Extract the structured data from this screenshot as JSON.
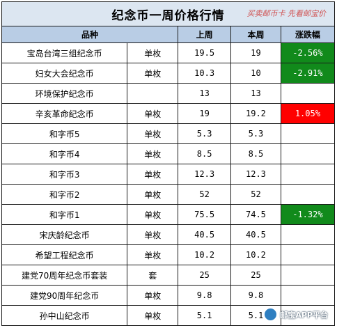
{
  "title": "纪念币一周价格行情",
  "slogan": "买卖邮币卡 先看邮宝价",
  "columns": [
    "品种",
    "上周",
    "本周",
    "涨跌幅"
  ],
  "rows": [
    {
      "name": "宝岛台湾三组纪念币",
      "unit": "单枚",
      "last": "19.5",
      "this": "19",
      "change": "-2.56%",
      "trend": "down"
    },
    {
      "name": "妇女大会纪念币",
      "unit": "单枚",
      "last": "10.3",
      "this": "10",
      "change": "-2.91%",
      "trend": "down"
    },
    {
      "name": "环境保护纪念币",
      "unit": "",
      "last": "13",
      "this": "13",
      "change": "",
      "trend": "flat"
    },
    {
      "name": "辛亥革命纪念币",
      "unit": "单枚",
      "last": "19",
      "this": "19.2",
      "change": "1.05%",
      "trend": "up"
    },
    {
      "name": "和字币5",
      "unit": "单枚",
      "last": "5.3",
      "this": "5.3",
      "change": "",
      "trend": "flat"
    },
    {
      "name": "和字币4",
      "unit": "单枚",
      "last": "8.5",
      "this": "8.5",
      "change": "",
      "trend": "flat"
    },
    {
      "name": "和字币3",
      "unit": "单枚",
      "last": "12.3",
      "this": "12.3",
      "change": "",
      "trend": "flat"
    },
    {
      "name": "和字币2",
      "unit": "单枚",
      "last": "52",
      "this": "52",
      "change": "",
      "trend": "flat"
    },
    {
      "name": "和字币1",
      "unit": "单枚",
      "last": "75.5",
      "this": "74.5",
      "change": "-1.32%",
      "trend": "down"
    },
    {
      "name": "宋庆龄纪念币",
      "unit": "单枚",
      "last": "40.5",
      "this": "40.5",
      "change": "",
      "trend": "flat"
    },
    {
      "name": "希望工程纪念币",
      "unit": "单枚",
      "last": "10.2",
      "this": "10.2",
      "change": "",
      "trend": "flat"
    },
    {
      "name": "建党70周年纪念币套装",
      "unit": "套",
      "last": "25",
      "this": "25",
      "change": "",
      "trend": "flat"
    },
    {
      "name": "建党90周年纪念币",
      "unit": "单枚",
      "last": "9.8",
      "this": "9.8",
      "change": "",
      "trend": "flat"
    },
    {
      "name": "孙中山纪念币",
      "unit": "单枚",
      "last": "5.1",
      "this": "5.1",
      "change": "",
      "trend": "flat"
    }
  ],
  "watermark": {
    "text": "邮宝APP平台",
    "icon": "app-logo-icon"
  },
  "colors": {
    "title_bg": "#dce6f1",
    "header_bg": "#b9cde5",
    "down": "#118a1b",
    "up": "#ff0000",
    "slogan": "#d05050"
  }
}
